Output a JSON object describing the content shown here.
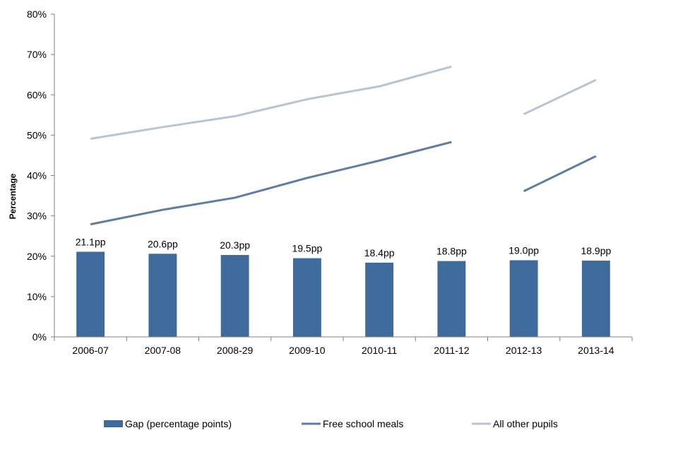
{
  "chart_data": {
    "type": "bar",
    "categories": [
      "2006-07",
      "2007-08",
      "2008-29",
      "2009-10",
      "2010-11",
      "2011-12",
      "2012-13",
      "2013-14"
    ],
    "ylabel": "Percentage",
    "xlabel": "",
    "ylim": [
      0,
      80
    ],
    "yticks": [
      "0%",
      "10%",
      "20%",
      "30%",
      "40%",
      "50%",
      "60%",
      "70%",
      "80%"
    ],
    "grid": false,
    "legend_position": "bottom",
    "series": [
      {
        "name": "Gap (percentage points)",
        "type": "bar",
        "color": "#3f6a9c",
        "values": [
          21.1,
          20.6,
          20.3,
          19.5,
          18.4,
          18.8,
          19.0,
          18.9
        ],
        "labels": [
          "21.1pp",
          "20.6pp",
          "20.3pp",
          "19.5pp",
          "18.4pp",
          "18.8pp",
          "19.0pp",
          "18.9pp"
        ]
      },
      {
        "name": "Free school meals",
        "type": "line",
        "color": "#5b7da8",
        "segments": [
          {
            "from": 0,
            "values": [
              27.9,
              31.5,
              34.5,
              39.4,
              43.7,
              48.3
            ]
          },
          {
            "from": 6,
            "values": [
              36.1,
              44.8
            ]
          }
        ]
      },
      {
        "name": "All other pupils",
        "type": "line",
        "color": "#b8c3d6",
        "segments": [
          {
            "from": 0,
            "values": [
              49.1,
              52.0,
              54.7,
              58.9,
              62.1,
              67.0
            ]
          },
          {
            "from": 6,
            "values": [
              55.2,
              63.7
            ]
          }
        ]
      }
    ]
  }
}
